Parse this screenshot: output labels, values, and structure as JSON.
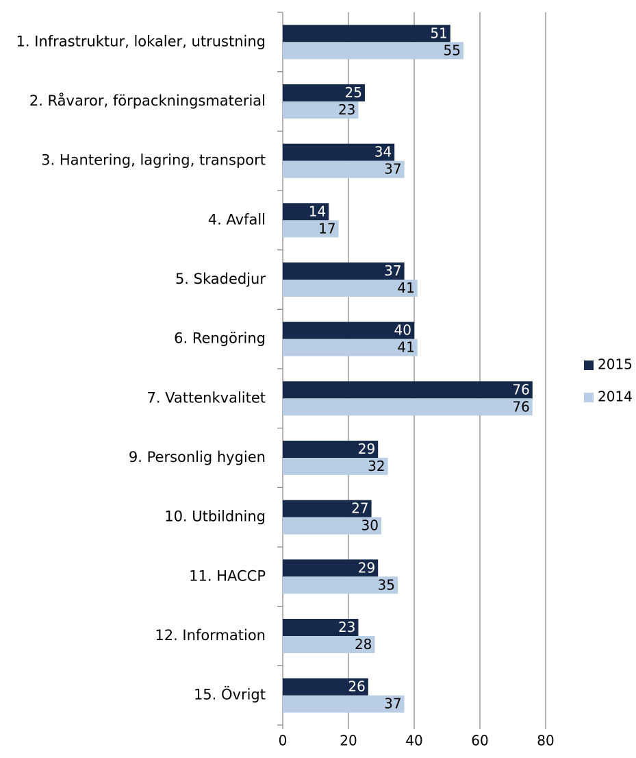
{
  "chart_data": {
    "type": "barh",
    "categories": [
      "1. Infrastruktur, lokaler, utrustning",
      "2. Råvaror, förpackningsmaterial",
      "3. Hantering, lagring, transport",
      "4. Avfall",
      "5. Skadedjur",
      "6. Rengöring",
      "7. Vattenkvalitet",
      "9. Personlig hygien",
      "10. Utbildning",
      "11. HACCP",
      "12. Information",
      "15. Övrigt"
    ],
    "series": [
      {
        "name": "2015",
        "color": "#17294a",
        "label_color": "#ffffff",
        "values": [
          51,
          25,
          34,
          14,
          37,
          40,
          76,
          29,
          27,
          29,
          23,
          26
        ]
      },
      {
        "name": "2014",
        "color": "#b9cde5",
        "label_color": "#000000",
        "values": [
          55,
          23,
          37,
          17,
          41,
          41,
          76,
          32,
          30,
          35,
          28,
          37
        ]
      }
    ],
    "xlim": [
      0,
      80
    ],
    "xticks": [
      0,
      20,
      40,
      60,
      80
    ],
    "grid": true,
    "legend": "right"
  }
}
